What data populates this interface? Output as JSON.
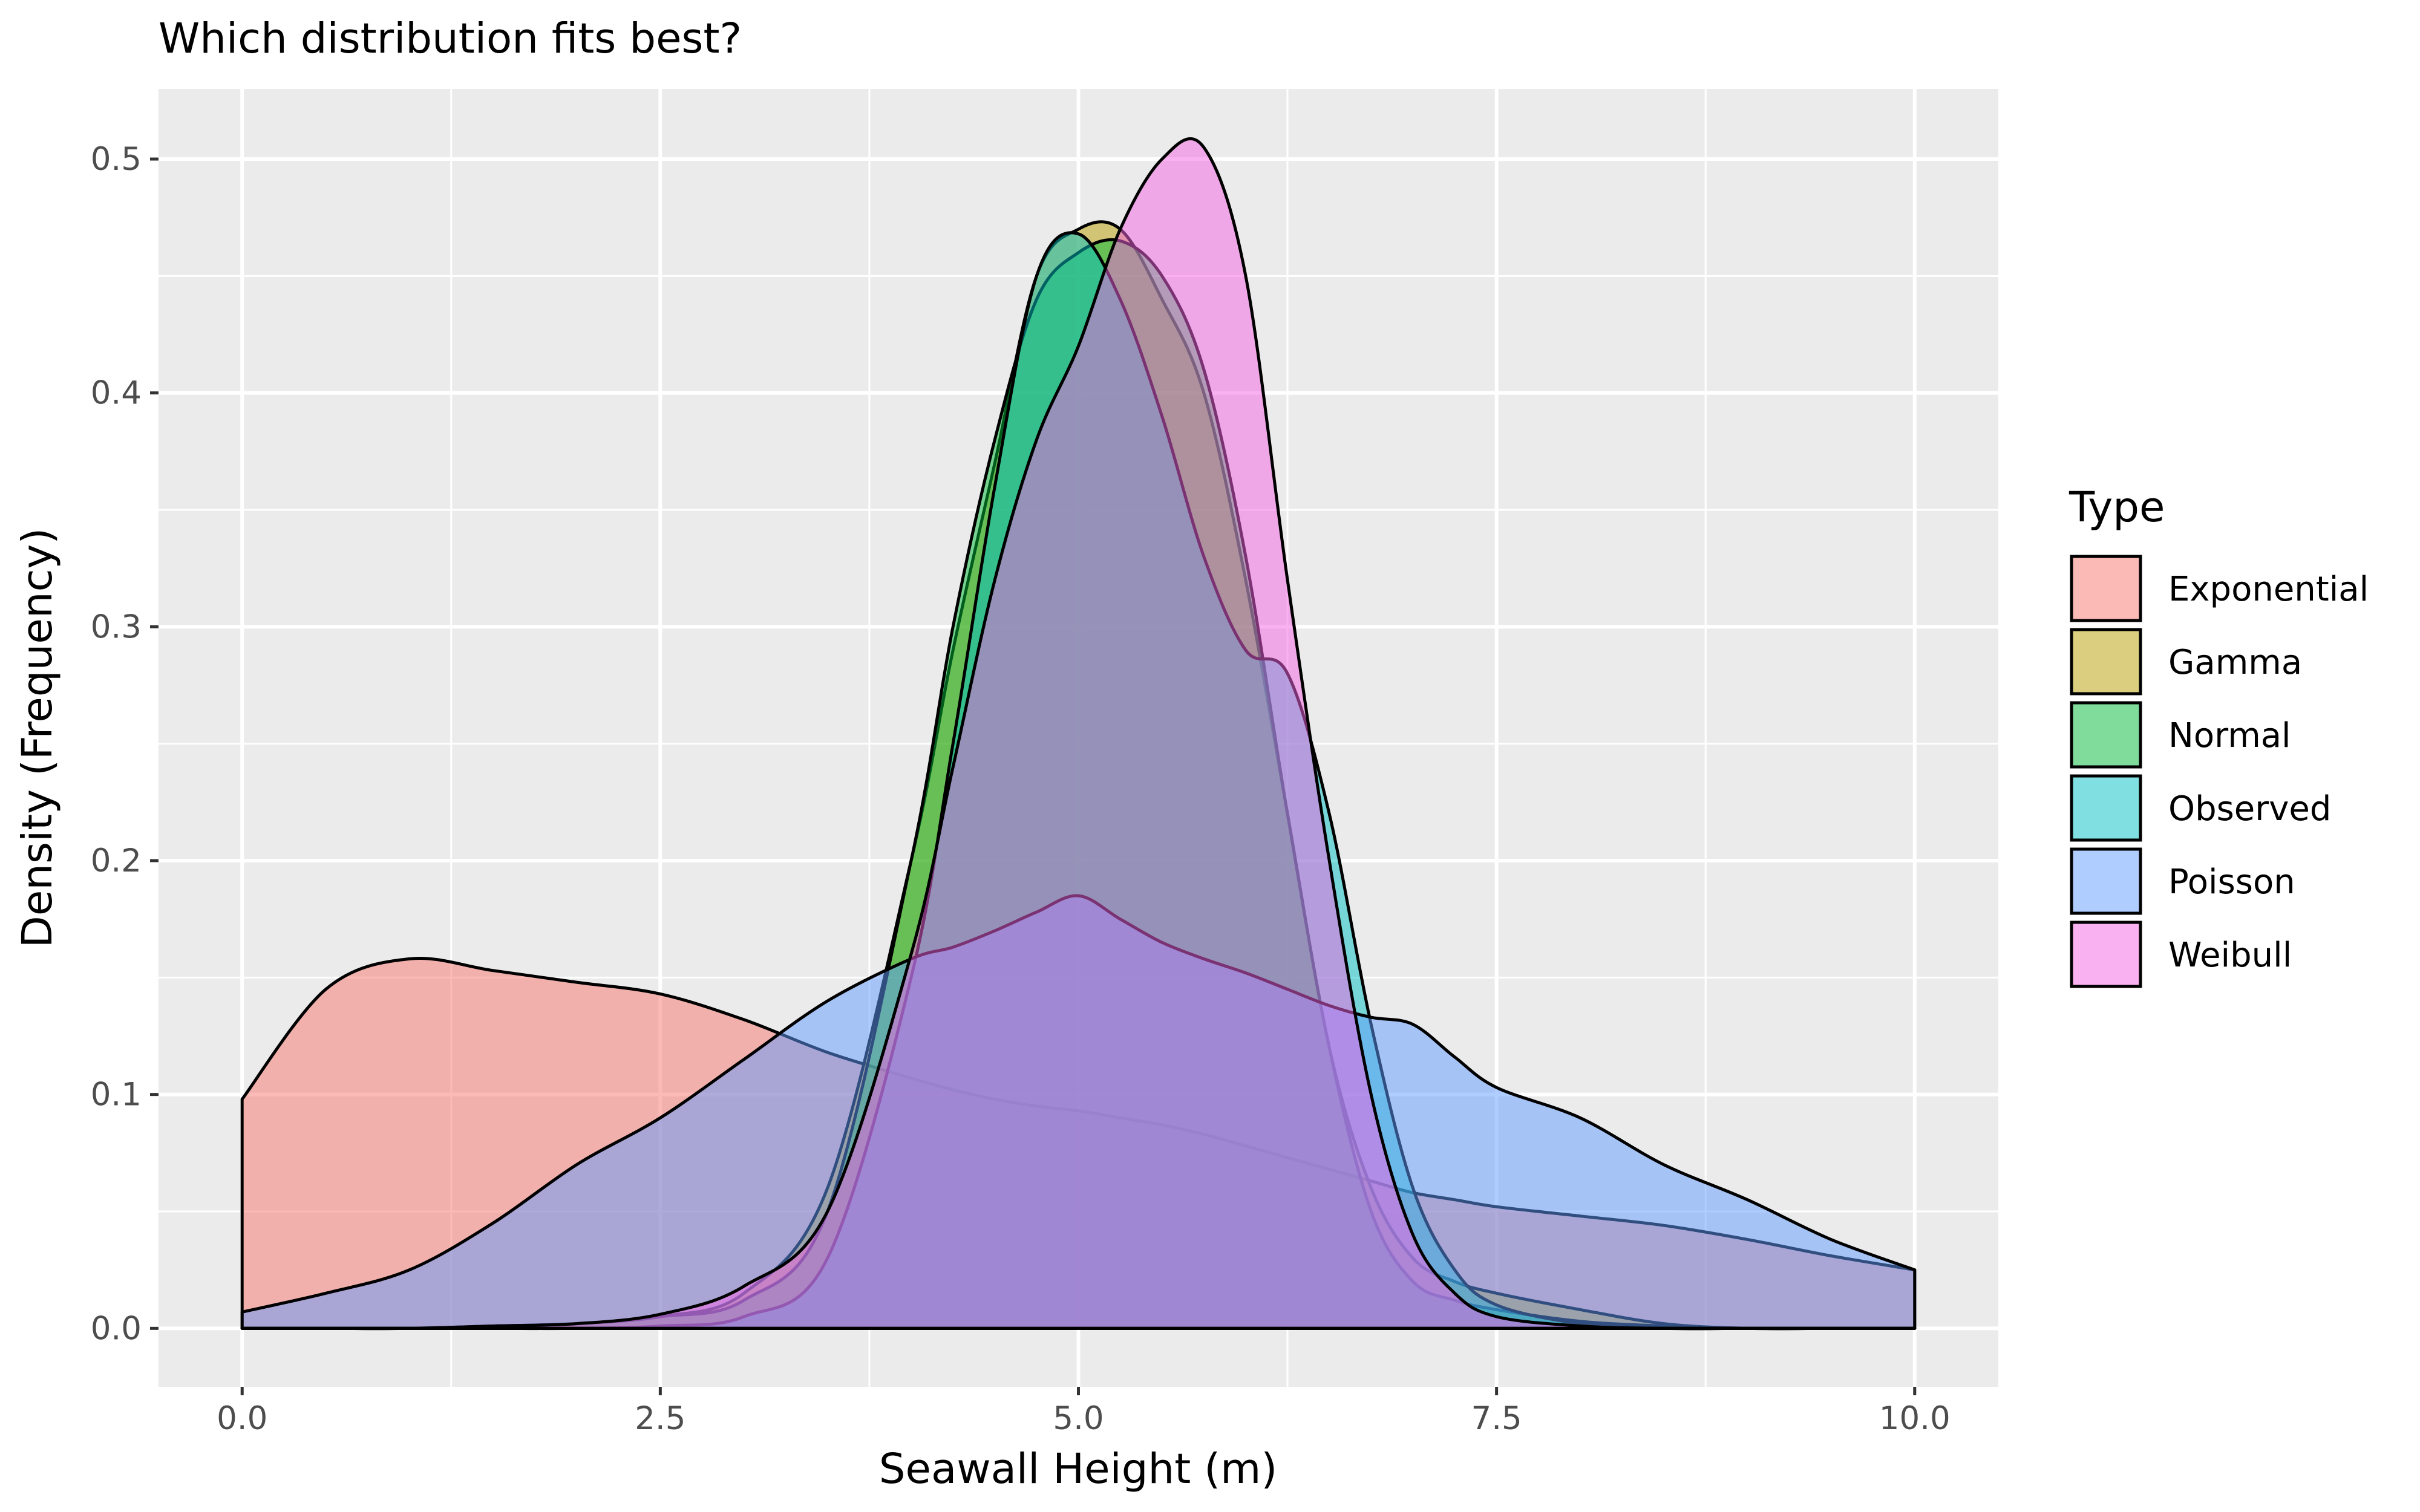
{
  "chart_data": {
    "type": "area",
    "title": "Which distribution fits best?",
    "xlabel": "Seawall Height (m)",
    "ylabel": "Density (Frequency)",
    "xlim": [
      -0.5,
      10.5
    ],
    "ylim": [
      -0.025,
      0.53
    ],
    "x_ticks": [
      0,
      2.5,
      5,
      7.5,
      10
    ],
    "x_tick_labels": [
      "0.0",
      "2.5",
      "5.0",
      "7.5",
      "10.0"
    ],
    "y_ticks": [
      0,
      0.1,
      0.2,
      0.3,
      0.4,
      0.5
    ],
    "y_tick_labels": [
      "0.0",
      "0.1",
      "0.2",
      "0.3",
      "0.4",
      "0.5"
    ],
    "grid": true,
    "legend": {
      "title": "Type",
      "position": "right"
    },
    "x": [
      0,
      0.5,
      1,
      1.5,
      2,
      2.5,
      3,
      3.5,
      4,
      4.25,
      4.5,
      4.75,
      5,
      5.25,
      5.5,
      5.75,
      6,
      6.25,
      6.5,
      6.75,
      7,
      7.25,
      7.5,
      8,
      8.5,
      9,
      9.5,
      10
    ],
    "series": [
      {
        "name": "Exponential",
        "color": "#F8766D",
        "values": [
          0.098,
          0.145,
          0.158,
          0.153,
          0.148,
          0.143,
          0.132,
          0.118,
          0.107,
          0.102,
          0.098,
          0.095,
          0.093,
          0.09,
          0.087,
          0.083,
          0.078,
          0.073,
          0.068,
          0.063,
          0.058,
          0.055,
          0.052,
          0.048,
          0.044,
          0.038,
          0.031,
          0.025
        ]
      },
      {
        "name": "Gamma",
        "color": "#B79F00",
        "values": [
          0,
          0,
          0,
          0.001,
          0.002,
          0.005,
          0.015,
          0.06,
          0.2,
          0.29,
          0.37,
          0.45,
          0.47,
          0.47,
          0.44,
          0.4,
          0.32,
          0.22,
          0.12,
          0.06,
          0.03,
          0.02,
          0.015,
          0.008,
          0.002,
          0,
          0,
          0
        ]
      },
      {
        "name": "Normal",
        "color": "#00BA38",
        "values": [
          0,
          0,
          0,
          0.001,
          0.002,
          0.005,
          0.012,
          0.05,
          0.2,
          0.3,
          0.38,
          0.44,
          0.46,
          0.465,
          0.45,
          0.41,
          0.33,
          0.22,
          0.12,
          0.05,
          0.02,
          0.012,
          0.008,
          0.003,
          0.001,
          0,
          0,
          0
        ]
      },
      {
        "name": "Observed",
        "color": "#00BFC4",
        "values": [
          0,
          0,
          0,
          0,
          0,
          0.001,
          0.005,
          0.03,
          0.15,
          0.25,
          0.36,
          0.45,
          0.468,
          0.44,
          0.39,
          0.33,
          0.29,
          0.28,
          0.22,
          0.13,
          0.06,
          0.025,
          0.01,
          0.002,
          0,
          0,
          0,
          0
        ]
      },
      {
        "name": "Poisson",
        "color": "#619CFF",
        "values": [
          0.007,
          0.015,
          0.025,
          0.045,
          0.07,
          0.09,
          0.115,
          0.14,
          0.158,
          0.163,
          0.17,
          0.178,
          0.185,
          0.175,
          0.165,
          0.158,
          0.152,
          0.145,
          0.138,
          0.133,
          0.13,
          0.116,
          0.103,
          0.09,
          0.07,
          0.055,
          0.038,
          0.025
        ]
      },
      {
        "name": "Weibull",
        "color": "#F564E3",
        "values": [
          0,
          0,
          0,
          0.001,
          0.002,
          0.006,
          0.018,
          0.05,
          0.16,
          0.24,
          0.32,
          0.38,
          0.42,
          0.47,
          0.5,
          0.505,
          0.45,
          0.32,
          0.2,
          0.1,
          0.04,
          0.015,
          0.005,
          0.001,
          0,
          0,
          0,
          0
        ]
      }
    ]
  }
}
